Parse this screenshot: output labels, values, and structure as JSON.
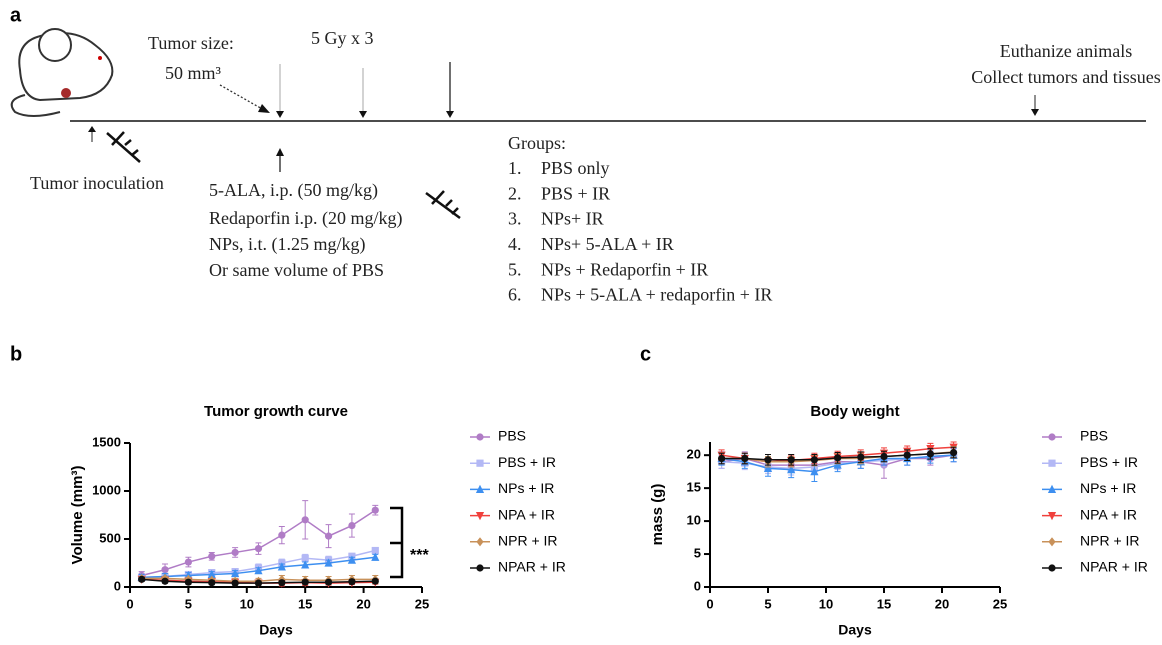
{
  "panel_a": {
    "label": "a",
    "tumor_size": "Tumor size:",
    "tumor_volume": "50 mm³",
    "radiation": "5 Gy x 3",
    "euthanize": "Euthanize animals",
    "collect": "Collect tumors and tissues",
    "inoculation": "Tumor inoculation",
    "treatments": [
      "5-ALA, i.p. (50 mg/kg)",
      "Redaporfin i.p. (20 mg/kg)",
      "NPs, i.t. (1.25 mg/kg)",
      "Or same volume of PBS"
    ],
    "groups_title": "Groups:",
    "groups": [
      {
        "number": "1.",
        "name": "PBS only"
      },
      {
        "number": "2.",
        "name": "PBS + IR"
      },
      {
        "number": "3.",
        "name": "NPs+ IR"
      },
      {
        "number": "4.",
        "name": "NPs+ 5-ALA + IR"
      },
      {
        "number": "5.",
        "name": "NPs + Redaporfin + IR"
      },
      {
        "number": "6.",
        "name": "NPs + 5-ALA + redaporfin + IR"
      }
    ]
  },
  "chart_data": [
    {
      "type": "line",
      "panel_label": "b",
      "title": "Tumor growth curve",
      "xlabel": "Days",
      "ylabel": "Volume (mm³)",
      "significance": "***",
      "xlim": [
        0,
        25
      ],
      "xticks": [
        0,
        5,
        10,
        15,
        20,
        25
      ],
      "ylim": [
        0,
        1500
      ],
      "yticks": [
        0,
        500,
        1000,
        1500
      ],
      "x": [
        1,
        3,
        5,
        7,
        9,
        11,
        13,
        15,
        17,
        19,
        21
      ],
      "series": [
        {
          "name": "PBS",
          "color": "#b07cc6",
          "marker": "circle",
          "values": [
            120,
            180,
            260,
            320,
            360,
            400,
            540,
            700,
            530,
            640,
            800
          ],
          "errors": [
            40,
            60,
            50,
            40,
            50,
            60,
            90,
            200,
            120,
            120,
            50
          ]
        },
        {
          "name": "PBS + IR",
          "color": "#b3b8f5",
          "marker": "square",
          "values": [
            100,
            110,
            130,
            150,
            160,
            200,
            250,
            300,
            280,
            320,
            380
          ],
          "errors": [
            30,
            30,
            30,
            30,
            30,
            40,
            40,
            40,
            40,
            30,
            30
          ]
        },
        {
          "name": "NPs + IR",
          "color": "#3d8ff0",
          "marker": "triangle-up",
          "values": [
            100,
            110,
            120,
            130,
            140,
            170,
            210,
            230,
            250,
            280,
            310
          ],
          "errors": [
            30,
            30,
            30,
            30,
            30,
            30,
            30,
            30,
            30,
            30,
            30
          ]
        },
        {
          "name": "NPA + IR",
          "color": "#f0403c",
          "marker": "triangle-down",
          "values": [
            80,
            70,
            60,
            55,
            50,
            40,
            40,
            45,
            40,
            45,
            50
          ],
          "errors": [
            20,
            20,
            20,
            20,
            20,
            20,
            30,
            30,
            20,
            20,
            20
          ]
        },
        {
          "name": "NPR + IR",
          "color": "#c8915a",
          "marker": "diamond",
          "values": [
            90,
            90,
            80,
            70,
            60,
            60,
            80,
            70,
            70,
            80,
            80
          ],
          "errors": [
            20,
            20,
            20,
            20,
            30,
            30,
            40,
            40,
            40,
            40,
            40
          ]
        },
        {
          "name": "NPAR + IR",
          "color": "#111111",
          "marker": "circle",
          "values": [
            80,
            60,
            50,
            45,
            40,
            40,
            45,
            50,
            50,
            55,
            60
          ],
          "errors": [
            20,
            20,
            20,
            20,
            20,
            20,
            20,
            20,
            20,
            20,
            20
          ]
        }
      ]
    },
    {
      "type": "line",
      "panel_label": "c",
      "title": "Body weight",
      "xlabel": "Days",
      "ylabel": "mass (g)",
      "xlim": [
        0,
        25
      ],
      "xticks": [
        0,
        5,
        10,
        15,
        20,
        25
      ],
      "ylim": [
        0,
        22
      ],
      "yticks": [
        0,
        5,
        10,
        15,
        20
      ],
      "x": [
        1,
        3,
        5,
        7,
        9,
        11,
        13,
        15,
        17,
        19,
        21
      ],
      "series": [
        {
          "name": "PBS",
          "color": "#b07cc6",
          "marker": "circle",
          "values": [
            19,
            19.5,
            18.5,
            18.5,
            18.5,
            19,
            19,
            18.5,
            19.5,
            19.5,
            20
          ],
          "errors": [
            1,
            1,
            1,
            1,
            1,
            1,
            1,
            2,
            1,
            1,
            1
          ]
        },
        {
          "name": "PBS + IR",
          "color": "#b3b8f5",
          "marker": "square",
          "values": [
            19,
            18.8,
            18.2,
            18,
            18.2,
            18.8,
            19,
            19.2,
            19.5,
            19.8,
            20
          ],
          "errors": [
            1,
            1,
            1,
            1,
            1,
            1,
            1,
            1,
            1,
            1,
            1
          ]
        },
        {
          "name": "NPs + IR",
          "color": "#3d8ff0",
          "marker": "triangle-up",
          "values": [
            19.5,
            19,
            18,
            17.8,
            17.5,
            18.5,
            19,
            19.5,
            19.5,
            19.8,
            20
          ],
          "errors": [
            1,
            1,
            1.2,
            1.2,
            1.5,
            1,
            1,
            1,
            1,
            1,
            1
          ]
        },
        {
          "name": "NPA + IR",
          "color": "#f0403c",
          "marker": "triangle-down",
          "values": [
            20,
            19.5,
            19,
            19.2,
            19.5,
            19.8,
            20,
            20.3,
            20.6,
            21,
            21.2
          ],
          "errors": [
            0.8,
            0.8,
            0.8,
            0.8,
            0.8,
            0.8,
            0.8,
            0.8,
            0.8,
            0.8,
            0.8
          ]
        },
        {
          "name": "NPR + IR",
          "color": "#c8915a",
          "marker": "diamond",
          "values": [
            19.5,
            19.5,
            19,
            19,
            19.2,
            19.5,
            19.5,
            19.8,
            20,
            20.2,
            20.5
          ],
          "errors": [
            0.8,
            0.8,
            0.8,
            0.8,
            0.8,
            0.8,
            0.8,
            0.8,
            0.8,
            0.8,
            0.8
          ]
        },
        {
          "name": "NPAR + IR",
          "color": "#111111",
          "marker": "circle",
          "values": [
            19.5,
            19.5,
            19.3,
            19.3,
            19.3,
            19.6,
            19.7,
            19.8,
            20,
            20.2,
            20.4
          ],
          "errors": [
            0.8,
            0.8,
            0.8,
            0.8,
            0.8,
            0.8,
            0.8,
            0.8,
            0.8,
            0.8,
            0.8
          ]
        }
      ]
    }
  ]
}
